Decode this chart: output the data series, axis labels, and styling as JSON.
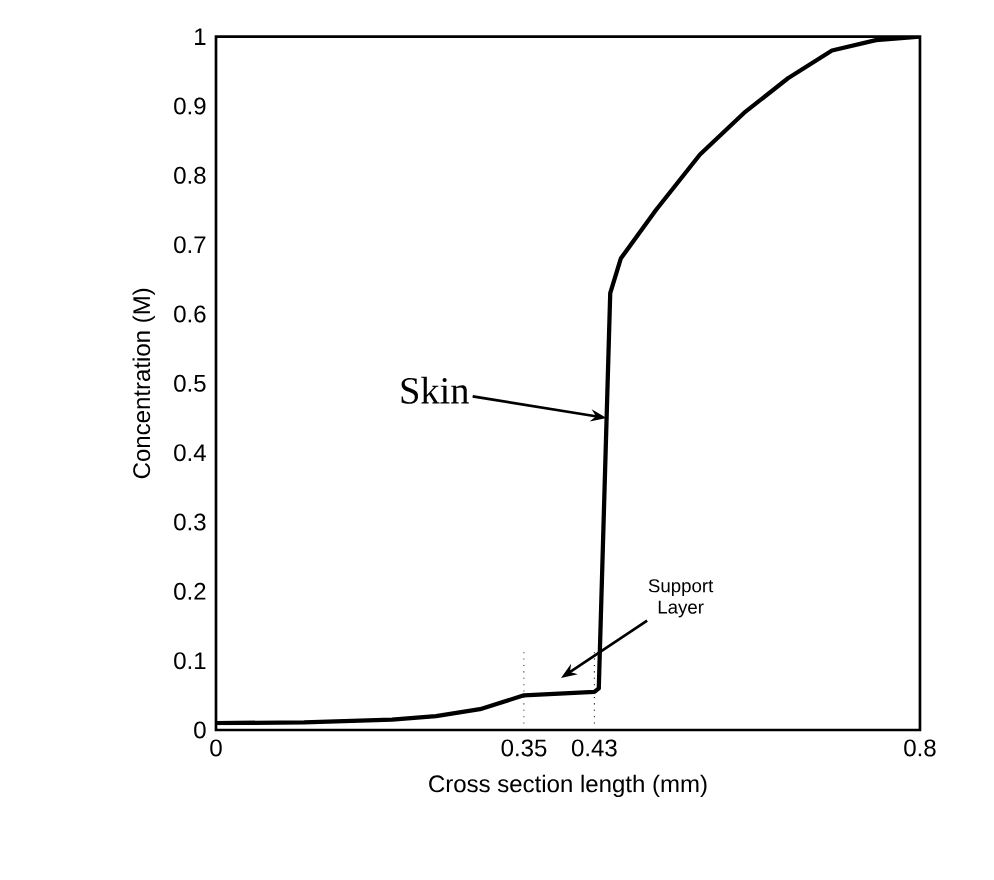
{
  "chart_data": {
    "type": "line",
    "xlabel": "Cross section length (mm)",
    "ylabel": "Concentration (M)",
    "x": [
      0,
      0.1,
      0.2,
      0.25,
      0.3,
      0.35,
      0.43,
      0.435,
      0.448,
      0.46,
      0.5,
      0.55,
      0.6,
      0.65,
      0.7,
      0.75,
      0.8
    ],
    "series": [
      {
        "color": "#000000",
        "values": [
          0.01,
          0.011,
          0.015,
          0.02,
          0.03,
          0.05,
          0.055,
          0.06,
          0.63,
          0.68,
          0.75,
          0.83,
          0.89,
          0.94,
          0.98,
          0.995,
          1
        ]
      }
    ],
    "xlim": [
      0,
      0.8
    ],
    "ylim": [
      0,
      1
    ],
    "xticks": [
      0,
      0.35,
      0.43,
      0.8
    ],
    "yticks": [
      0,
      0.1,
      0.2,
      0.3,
      0.4,
      0.5,
      0.6,
      0.7,
      0.8,
      0.9,
      1
    ],
    "grid": false,
    "marker": "none",
    "line_style": "solid",
    "ref_lines": [
      {
        "axis": "x",
        "value": 0.35,
        "line_style": "dotted"
      },
      {
        "axis": "x",
        "value": 0.43,
        "line_style": "dotted"
      }
    ],
    "annotations": [
      {
        "text": "Skin",
        "x": 0.444,
        "y": 0.45
      },
      "Support Layer"
    ]
  }
}
